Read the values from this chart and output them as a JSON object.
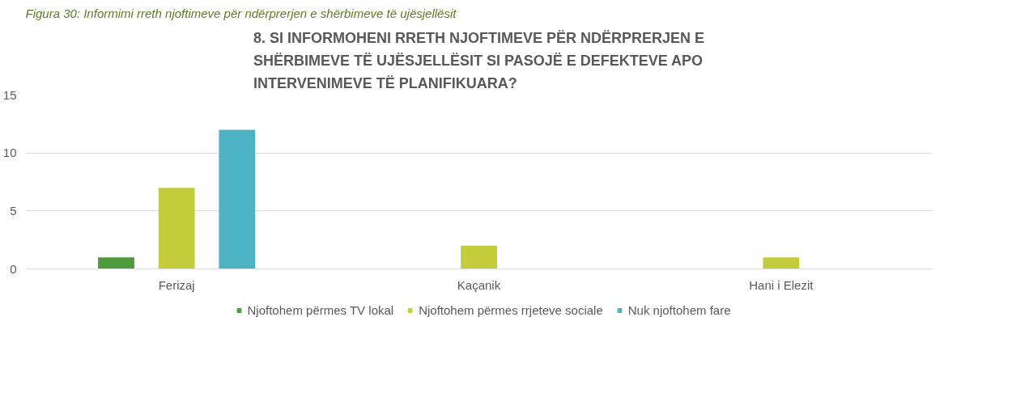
{
  "chart_data": {
    "type": "bar",
    "title": "8. SI INFORMOHENI RRETH NJOFTIMEVE PËR NDËRPRERJEN E SHËRBIMEVE TË UJËSJELLËSIT SI PASOJË E DEFEKTEVE APO INTERVENIMEVE TË PLANIFIKUARA?",
    "annotations": [
      "Figura 30: Informimi rreth njoftimeve për ndërprerjen e shërbimeve të ujësjellësit"
    ],
    "categories": [
      "Ferizaj",
      "Kaçanik",
      "Hani i Elezit"
    ],
    "series": [
      {
        "name": "Njoftohem përmes TV lokal",
        "color": "#4e9a3a",
        "values": [
          1,
          0,
          0
        ]
      },
      {
        "name": "Njoftohem përmes rrjeteve sociale",
        "color": "#c3cd3b",
        "values": [
          7,
          2,
          1
        ]
      },
      {
        "name": "Nuk njoftohem fare",
        "color": "#4bb3c3",
        "values": [
          12,
          0,
          0
        ]
      }
    ],
    "ylim": [
      0,
      15
    ],
    "yticks": [
      0,
      5,
      10,
      15
    ],
    "grid": "y",
    "legend": "bottom"
  }
}
